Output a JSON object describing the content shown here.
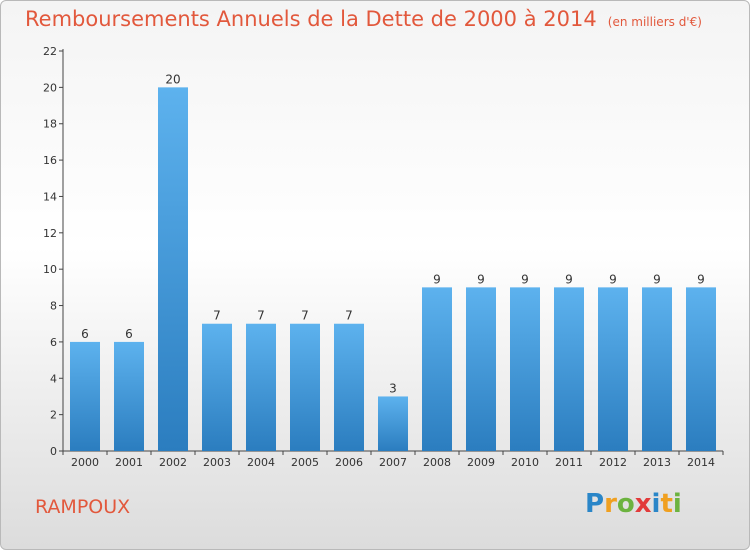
{
  "title": "Remboursements Annuels de la Dette de 2000 à 2014",
  "unit": "(en milliers d'€)",
  "commune": "RAMPOUX",
  "logo_text": "Proxiti",
  "colors": {
    "title": "#e2583c",
    "bar_light": "#5db2ee",
    "bar_dark": "#2b7dbf",
    "axis": "#444444"
  },
  "chart_data": {
    "type": "bar",
    "title": "Remboursements Annuels de la Dette de 2000 à 2014",
    "xlabel": "",
    "ylabel": "",
    "categories": [
      "2000",
      "2001",
      "2002",
      "2003",
      "2004",
      "2005",
      "2006",
      "2007",
      "2008",
      "2009",
      "2010",
      "2011",
      "2012",
      "2013",
      "2014"
    ],
    "values": [
      6,
      6,
      20,
      7,
      7,
      7,
      7,
      3,
      9,
      9,
      9,
      9,
      9,
      9,
      9
    ],
    "ylim": [
      0,
      22
    ],
    "yticks": [
      0,
      2,
      4,
      6,
      8,
      10,
      12,
      14,
      16,
      18,
      20,
      22
    ],
    "grid": false,
    "legend": "none"
  }
}
